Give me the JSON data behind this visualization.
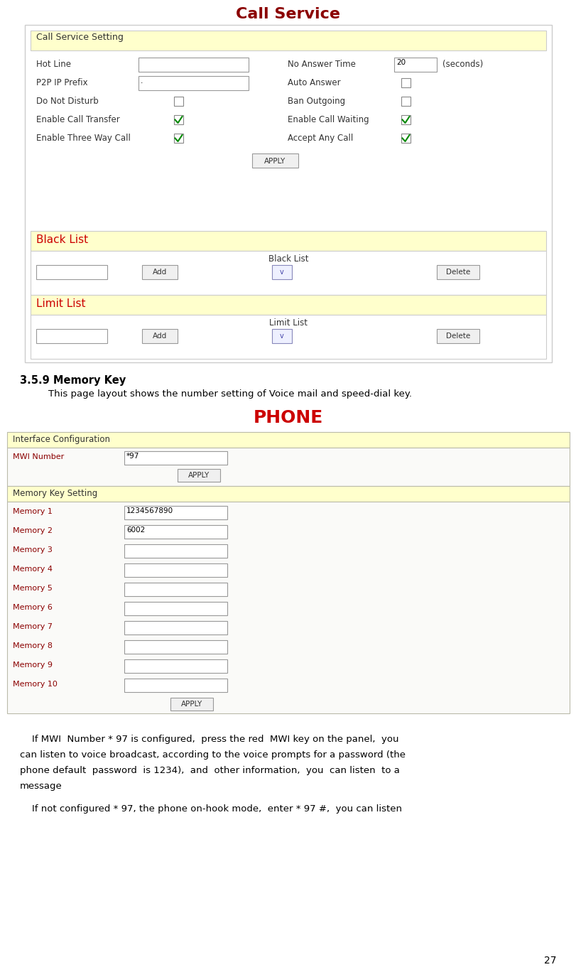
{
  "title": "Call Service",
  "title_color": "#8B0000",
  "page_number": "27",
  "section_title": "3.5.9 Memory Key",
  "section_desc": "This page layout shows the number setting of Voice mail and speed-dial key.",
  "phone_title": "PHONE",
  "phone_title_color": "#CC0000",
  "bg_color": "#FFFFFF",
  "header_bg": "#FFFFCC",
  "input_bg": "#FFFFFF",
  "input_border": "#AAAAAA",
  "button_bg": "#F0F0F0",
  "button_border": "#999999",
  "panel_outer_border": "#AAAAAA",
  "panel_bg": "#FFFFFF",
  "red_label_color": "#8B0000",
  "call_service_rows": [
    {
      "label": "Hot Line",
      "input": true,
      "input_val": "",
      "right_label": "No Answer Time",
      "right_input": true,
      "right_val": "20",
      "right_suffix": "(seconds)",
      "checkbox_left": false,
      "checkbox_right": false,
      "check_left": false,
      "check_right": false
    },
    {
      "label": "P2P IP Prefix",
      "input": true,
      "input_val": ".",
      "right_label": "Auto Answer",
      "right_input": false,
      "right_val": "",
      "right_suffix": "",
      "checkbox_left": false,
      "checkbox_right": true,
      "check_left": false,
      "check_right": false
    },
    {
      "label": "Do Not Disturb",
      "input": false,
      "input_val": "",
      "right_label": "Ban Outgoing",
      "right_input": false,
      "right_val": "",
      "right_suffix": "",
      "checkbox_left": true,
      "checkbox_right": true,
      "check_left": false,
      "check_right": false
    },
    {
      "label": "Enable Call Transfer",
      "input": false,
      "input_val": "",
      "right_label": "Enable Call Waiting",
      "right_input": false,
      "right_val": "",
      "right_suffix": "",
      "checkbox_left": true,
      "checkbox_right": true,
      "check_left": true,
      "check_right": true
    },
    {
      "label": "Enable Three Way Call",
      "input": false,
      "input_val": "",
      "right_label": "Accept Any Call",
      "right_input": false,
      "right_val": "",
      "right_suffix": "",
      "checkbox_left": true,
      "checkbox_right": true,
      "check_left": true,
      "check_right": true
    }
  ],
  "memory_entries": [
    [
      "Memory 1",
      "1234567890"
    ],
    [
      "Memory 2",
      "6002"
    ],
    [
      "Memory 3",
      ""
    ],
    [
      "Memory 4",
      ""
    ],
    [
      "Memory 5",
      ""
    ],
    [
      "Memory 6",
      ""
    ],
    [
      "Memory 7",
      ""
    ],
    [
      "Memory 8",
      ""
    ],
    [
      "Memory 9",
      ""
    ],
    [
      "Memory 10",
      ""
    ]
  ],
  "bottom_lines": [
    "    If MWI  Number * 97 is configured,  press the red  MWI key on the panel,  you",
    "can listen to voice broadcast, according to the voice prompts for a password (the",
    "phone default  password  is 1234),  and  other information,  you  can listen  to a",
    "message",
    "    If not configured * 97, the phone on-hook mode,  enter * 97 #,  you can listen"
  ]
}
